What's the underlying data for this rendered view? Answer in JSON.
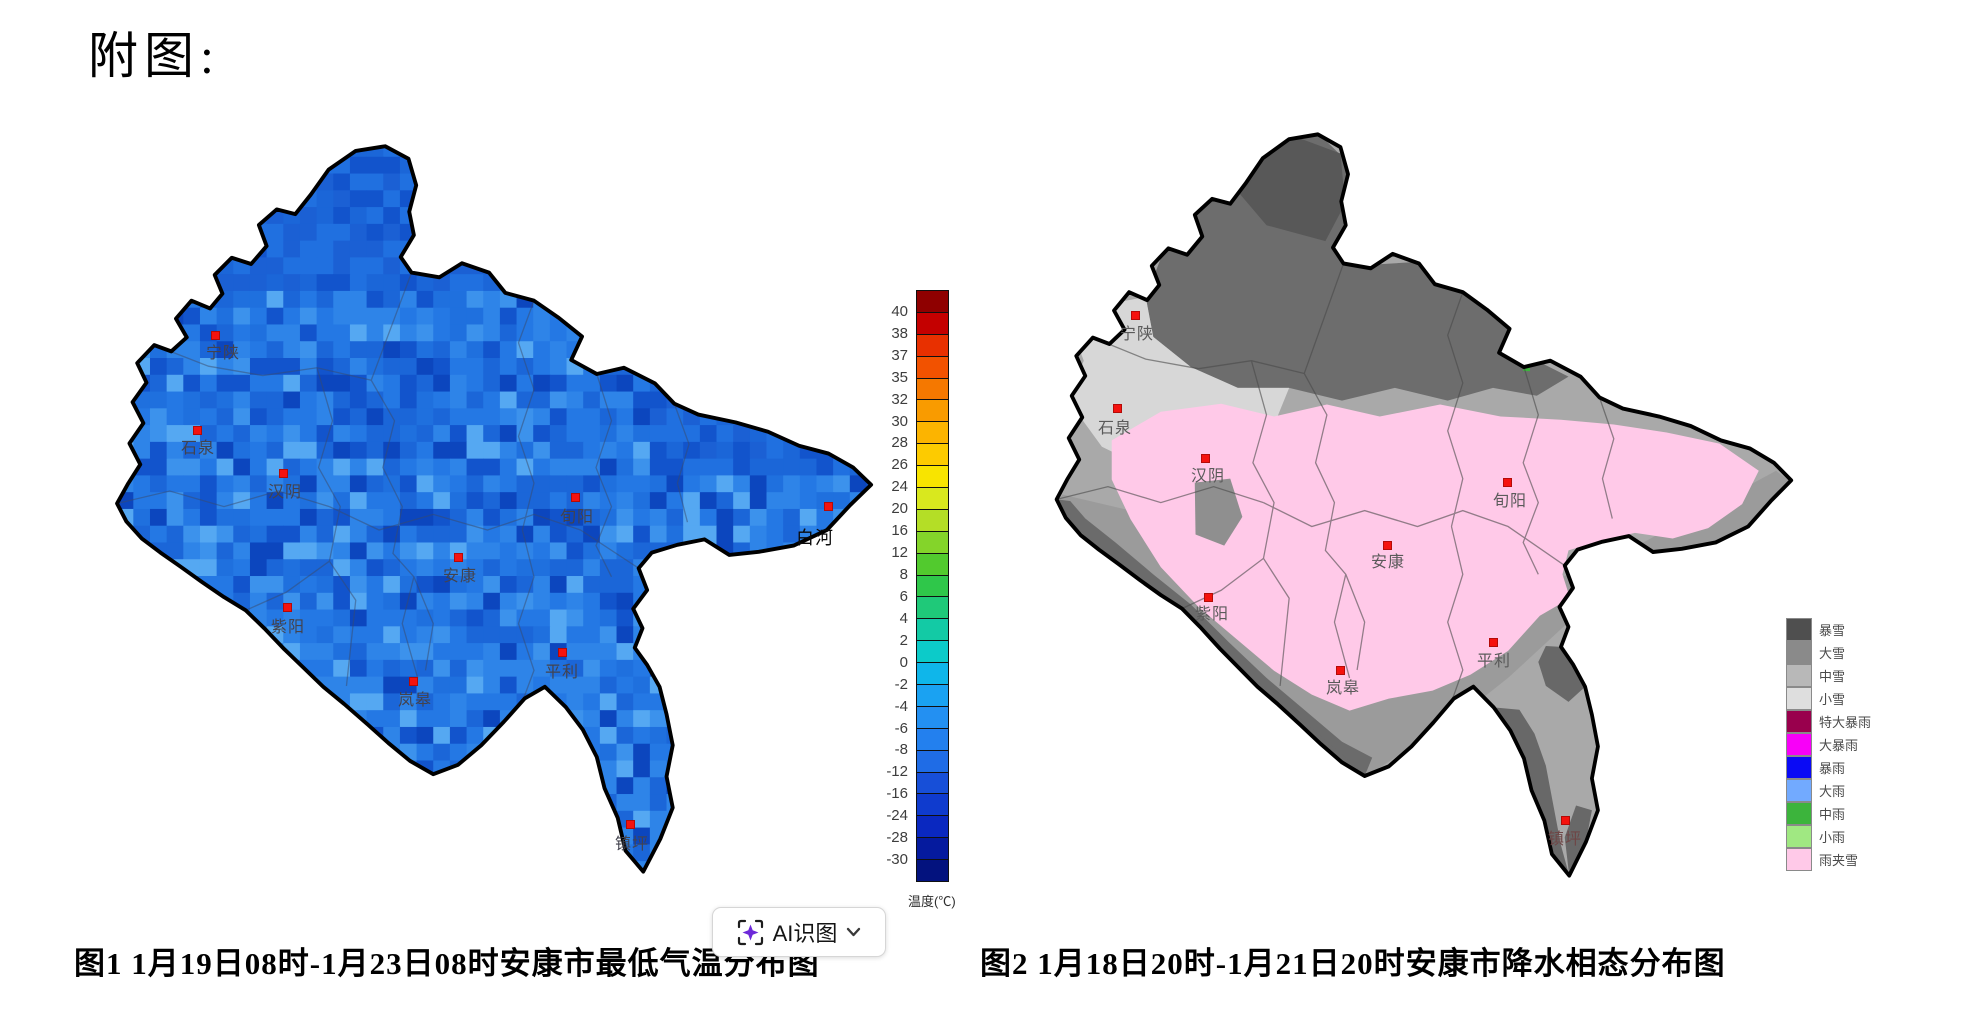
{
  "page": {
    "title": "附图:",
    "background": "#ffffff"
  },
  "figure1": {
    "name": "安康市最低气温分布图",
    "caption": "图1  1月19日08时-1月23日08时安康市最低气温分布图",
    "map_type": "temperature-distribution",
    "palette": [
      "#2478e4",
      "#2e84e8",
      "#1b66d8",
      "#3c92ec",
      "#1254cc",
      "#55a8f2",
      "#0c46be",
      "#2478e4",
      "#2e84e8",
      "#1b66d8",
      "#2478e4",
      "#1f70de"
    ],
    "palette_dark": [
      "#1b66d8",
      "#1254cc",
      "#2070e0",
      "#1b60d4"
    ],
    "cities": [
      {
        "name": "宁陕",
        "dot": [
          215,
          335
        ],
        "label": [
          223,
          351
        ],
        "style": "left"
      },
      {
        "name": "石泉",
        "dot": [
          197,
          430
        ],
        "label": [
          198,
          446
        ],
        "style": "left"
      },
      {
        "name": "汉阴",
        "dot": [
          283,
          473
        ],
        "label": [
          285,
          490
        ],
        "style": "left"
      },
      {
        "name": "旬阳",
        "dot": [
          575,
          497
        ],
        "label": [
          577,
          515
        ],
        "style": "left"
      },
      {
        "name": "白河",
        "dot": [
          828,
          506
        ],
        "label": [
          815,
          537
        ],
        "style": "dark-serif"
      },
      {
        "name": "安康",
        "dot": [
          458,
          557
        ],
        "label": [
          460,
          574
        ],
        "style": "left"
      },
      {
        "name": "紫阳",
        "dot": [
          287,
          607
        ],
        "label": [
          288,
          625
        ],
        "style": "left"
      },
      {
        "name": "平利",
        "dot": [
          562,
          652
        ],
        "label": [
          562,
          670
        ],
        "style": "left"
      },
      {
        "name": "岚皋",
        "dot": [
          413,
          681
        ],
        "label": [
          415,
          698
        ],
        "style": "left"
      },
      {
        "name": "镇坪",
        "dot": [
          630,
          824
        ],
        "label": [
          632,
          842
        ],
        "style": "left"
      }
    ],
    "colorbar": {
      "unit": "温度(℃)",
      "ticks": [
        "40",
        "38",
        "37",
        "35",
        "32",
        "30",
        "28",
        "26",
        "24",
        "20",
        "16",
        "12",
        "8",
        "6",
        "4",
        "2",
        "0",
        "-2",
        "-4",
        "-6",
        "-8",
        "-12",
        "-16",
        "-24",
        "-28",
        "-30"
      ],
      "colors": [
        "#8f0000",
        "#c40000",
        "#e83000",
        "#f25200",
        "#f57800",
        "#f99b00",
        "#fcb400",
        "#fdcb00",
        "#f8e400",
        "#d9e81e",
        "#b4de26",
        "#84d42a",
        "#52ca2e",
        "#2fc74a",
        "#1fc979",
        "#13caa5",
        "#0ccbc9",
        "#0fb6ea",
        "#1aa2f2",
        "#2390f2",
        "#2380ee",
        "#1f6ce6",
        "#174fd8",
        "#0f3bce",
        "#0a28c0",
        "#051a9e",
        "#03127e"
      ]
    }
  },
  "figure2": {
    "name": "安康市降水相态分布图",
    "caption": "图2  1月18日20时-1月21日20时安康市降水相态分布图",
    "map_type": "precipitation-phase-distribution",
    "zone_fills": {
      "base": "#a9a9a9",
      "dark_north": "#6d6d6d",
      "darker_top": "#585858",
      "light_nw": "#d7d7d7",
      "south_mid": "#9b9b9b",
      "pink": "#ffc9e8",
      "south_dark": "#6b6b6b",
      "tail_dark": "#686868",
      "inner_patch": "#8f8f8f",
      "green_speck": "#3cb43c",
      "pink_speck": "#ffc9e8"
    },
    "cities": [
      {
        "name": "宁陕",
        "dot": [
          1135,
          315
        ],
        "label": [
          1137,
          332
        ],
        "style": "right-map"
      },
      {
        "name": "石泉",
        "dot": [
          1117,
          408
        ],
        "label": [
          1115,
          426
        ],
        "style": "right-map"
      },
      {
        "name": "汉阴",
        "dot": [
          1205,
          458
        ],
        "label": [
          1208,
          474
        ],
        "style": "right-map"
      },
      {
        "name": "旬阳",
        "dot": [
          1507,
          482
        ],
        "label": [
          1510,
          499
        ],
        "style": "right-map"
      },
      {
        "name": "安康",
        "dot": [
          1387,
          545
        ],
        "label": [
          1388,
          560
        ],
        "style": "right-map"
      },
      {
        "name": "紫阳",
        "dot": [
          1208,
          597
        ],
        "label": [
          1212,
          612
        ],
        "style": "right-map"
      },
      {
        "name": "平利",
        "dot": [
          1493,
          642
        ],
        "label": [
          1494,
          659
        ],
        "style": "right-map"
      },
      {
        "name": "岚皋",
        "dot": [
          1340,
          670
        ],
        "label": [
          1343,
          686
        ],
        "style": "right-map"
      },
      {
        "name": "镇坪",
        "dot": [
          1565,
          820
        ],
        "label": [
          1565,
          837
        ],
        "style": "dim-red"
      }
    ],
    "legend": [
      {
        "label": "暴雪",
        "color": "#4f4f4f"
      },
      {
        "label": "大雪",
        "color": "#8a8a8a"
      },
      {
        "label": "中雪",
        "color": "#b8b8b8"
      },
      {
        "label": "小雪",
        "color": "#dedede"
      },
      {
        "label": "特大暴雨",
        "color": "#99004d"
      },
      {
        "label": "大暴雨",
        "color": "#f800f8"
      },
      {
        "label": "暴雨",
        "color": "#0a0af5"
      },
      {
        "label": "大雨",
        "color": "#72aaff"
      },
      {
        "label": "中雨",
        "color": "#3cb43c"
      },
      {
        "label": "小雨",
        "color": "#a0e882"
      },
      {
        "label": "雨夹雪",
        "color": "#ffc9e8"
      }
    ]
  },
  "ai_button": {
    "label": "AI识图",
    "icon": "ai-scan-sparkle-icon",
    "accent": "#6d28d9",
    "chevron": "chevron-down-icon"
  }
}
